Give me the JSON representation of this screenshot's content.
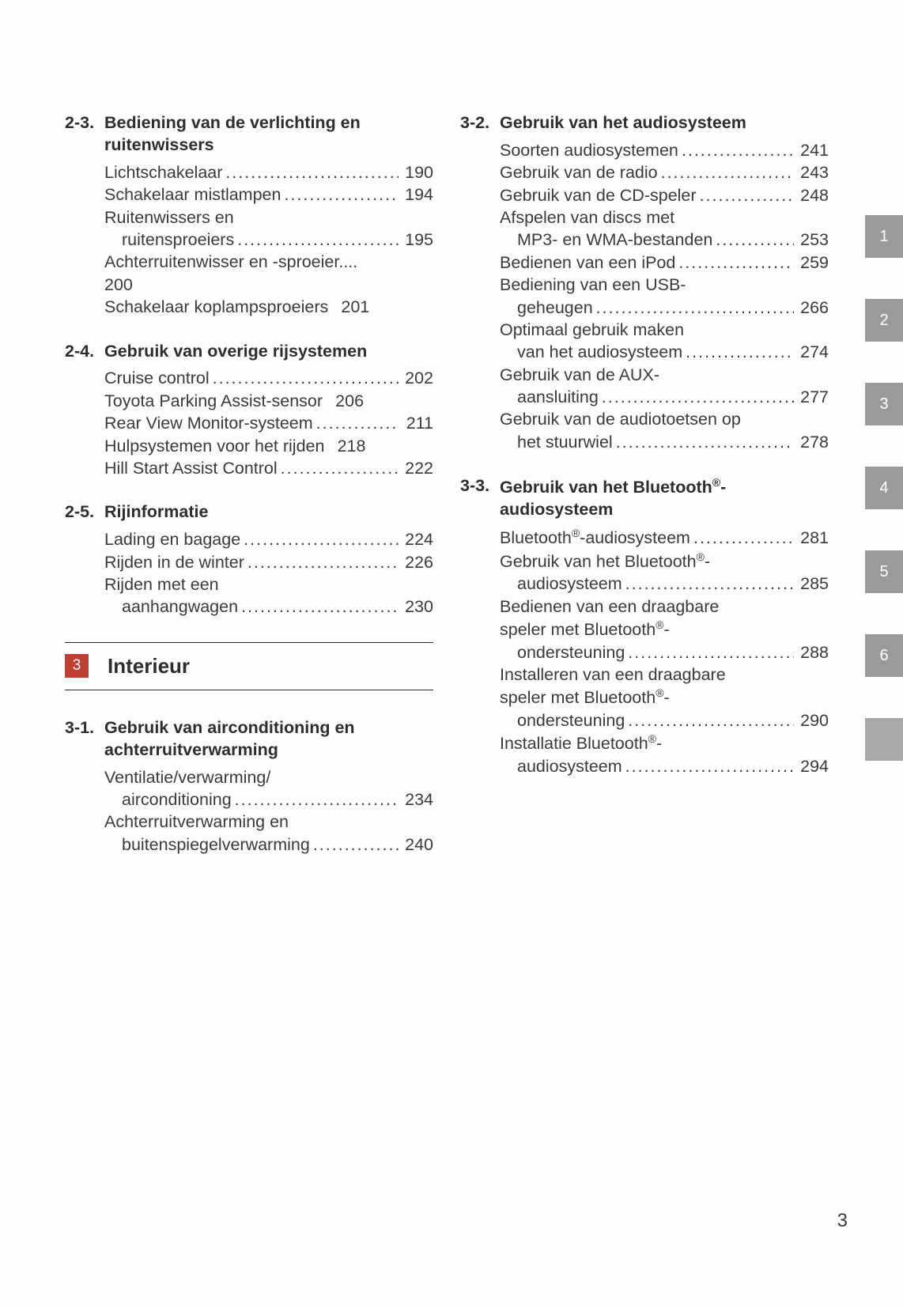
{
  "page_number": "3",
  "side_tabs": [
    "1",
    "2",
    "3",
    "4",
    "5",
    "6",
    ""
  ],
  "tab_colors": {
    "bg": "#9a9a9a",
    "text": "#ffffff"
  },
  "chapter": {
    "badge_number": "3",
    "badge_bg": "#bf3f33",
    "title": "Interieur"
  },
  "left_column": [
    {
      "number": "2-3.",
      "title": "Bediening van de verlichting en ruitenwissers",
      "entries": [
        {
          "label": "Lichtschakelaar",
          "page": "190"
        },
        {
          "label": "Schakelaar mistlampen",
          "page": "194"
        },
        {
          "label_lines": [
            "Ruitenwissers en",
            "ruitensproeiers"
          ],
          "page": "195"
        },
        {
          "label_lines": [
            "Achterruitenwisser en -sproeier....",
            "200"
          ],
          "no_dots": true
        },
        {
          "label": "Schakelaar koplampsproeiers",
          "page": "201",
          "tight": true
        }
      ]
    },
    {
      "number": "2-4.",
      "title": "Gebruik van overige rijsystemen",
      "entries": [
        {
          "label": "Cruise control",
          "page": "202"
        },
        {
          "label": "Toyota Parking Assist-sensor",
          "page": "206",
          "tight": true
        },
        {
          "label": "Rear View Monitor-systeem",
          "page": "211"
        },
        {
          "label": "Hulpsystemen voor het rijden",
          "page": "218",
          "tight": true
        },
        {
          "label": "Hill Start Assist Control",
          "page": "222"
        }
      ]
    },
    {
      "number": "2-5.",
      "title": "Rijinformatie",
      "entries": [
        {
          "label": "Lading en bagage",
          "page": "224"
        },
        {
          "label": "Rijden in de winter",
          "page": "226"
        },
        {
          "label_lines": [
            "Rijden met een",
            "aanhangwagen"
          ],
          "page": "230"
        }
      ]
    }
  ],
  "left_after_chapter": [
    {
      "number": "3-1.",
      "title": "Gebruik van airconditioning en achterruitverwarming",
      "entries": [
        {
          "label_lines": [
            "Ventilatie/verwarming/",
            "airconditioning"
          ],
          "page": "234"
        },
        {
          "label_lines": [
            "Achterruitverwarming en",
            "buitenspiegelverwarming"
          ],
          "page": "240"
        }
      ]
    }
  ],
  "right_column": [
    {
      "number": "3-2.",
      "title": "Gebruik van het audiosysteem",
      "entries": [
        {
          "label": "Soorten audiosystemen",
          "page": "241"
        },
        {
          "label": "Gebruik van de radio",
          "page": "243"
        },
        {
          "label": "Gebruik van de CD-speler",
          "page": "248"
        },
        {
          "label_lines": [
            "Afspelen van discs met",
            "MP3- en WMA-bestanden"
          ],
          "page": "253"
        },
        {
          "label": "Bedienen van een iPod",
          "page": "259"
        },
        {
          "label_lines": [
            "Bediening van een USB-",
            "geheugen"
          ],
          "page": "266"
        },
        {
          "label_lines": [
            "Optimaal gebruik maken",
            "van het audiosysteem"
          ],
          "page": "274"
        },
        {
          "label_lines": [
            "Gebruik van de AUX-",
            "aansluiting"
          ],
          "page": "277"
        },
        {
          "label_lines": [
            "Gebruik van de audiotoetsen op",
            "het stuurwiel"
          ],
          "page": "278"
        }
      ]
    },
    {
      "number": "3-3.",
      "title_html": "Gebruik van het Bluetooth<sup>®</sup>-audiosysteem",
      "entries": [
        {
          "label_html": "Bluetooth<sup>®</sup>-audiosysteem",
          "page": "281"
        },
        {
          "label_lines_html": [
            "Gebruik van het Bluetooth<sup>®</sup>-",
            "audiosysteem"
          ],
          "page": "285"
        },
        {
          "label_lines_html": [
            "Bedienen van een draagbare",
            "speler met Bluetooth<sup>®</sup>-",
            "ondersteuning"
          ],
          "page": "288"
        },
        {
          "label_lines_html": [
            "Installeren van een draagbare",
            "speler met Bluetooth<sup>®</sup>-",
            "ondersteuning"
          ],
          "page": "290"
        },
        {
          "label_lines_html": [
            "Installatie Bluetooth<sup>®</sup>-",
            "audiosysteem"
          ],
          "page": "294"
        }
      ]
    }
  ]
}
